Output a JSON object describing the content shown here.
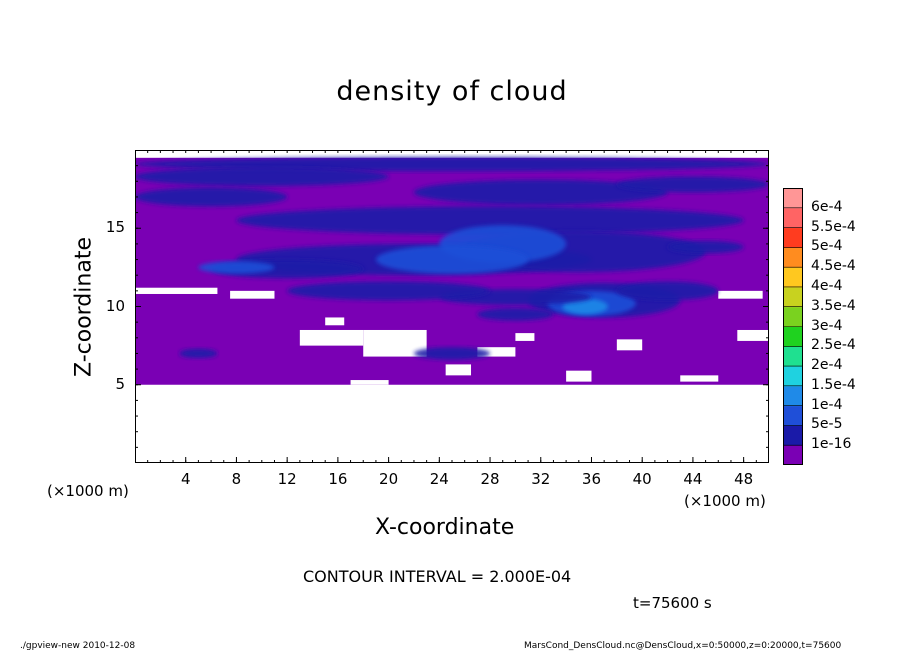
{
  "title": "density of cloud",
  "chart_data": {
    "type": "heatmap",
    "title": "density of cloud",
    "xlabel": "X-coordinate",
    "ylabel": "Z-coordinate",
    "x_unit": "(×1000 m)",
    "xlim": [
      0,
      50
    ],
    "ylim": [
      0,
      20
    ],
    "x_ticks": [
      "4",
      "8",
      "12",
      "16",
      "20",
      "24",
      "28",
      "32",
      "36",
      "40",
      "44",
      "48"
    ],
    "y_ticks": [
      "5",
      "10",
      "15"
    ],
    "colorbar": {
      "labels": [
        "1e-16",
        "5e-5",
        "1e-4",
        "1.5e-4",
        "2e-4",
        "2.5e-4",
        "3e-4",
        "3.5e-4",
        "4e-4",
        "4.5e-4",
        "5e-4",
        "5.5e-4",
        "6e-4"
      ],
      "colors": [
        "#7a00b4",
        "#1a1aa8",
        "#1f4fd8",
        "#1f8ae8",
        "#1fd2e0",
        "#1fe090",
        "#1fd21f",
        "#7ad21f",
        "#c8d21f",
        "#ffc81f",
        "#ff8c1f",
        "#ff3c1f",
        "#ff6464",
        "#ff9696"
      ]
    },
    "contour_interval": "CONTOUR INTERVAL = 2.000E-04",
    "time": "t=75600 s"
  },
  "footer": {
    "left": "./gpview-new   2010-12-08",
    "right": "MarsCond_DensCloud.nc@DensCloud,x=0:50000,z=0:20000,t=75600"
  }
}
